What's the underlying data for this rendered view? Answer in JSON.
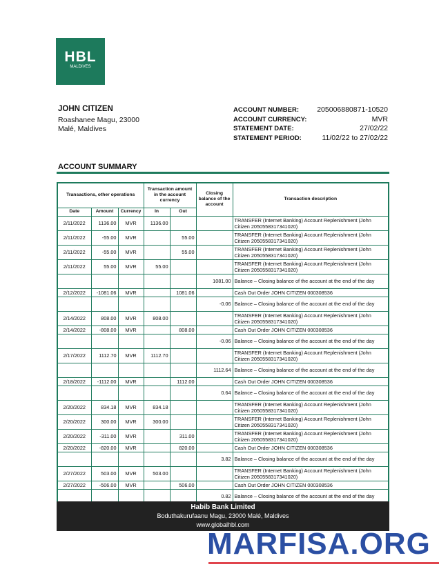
{
  "logo": {
    "text": "HBL",
    "subtext": "MALDIVES"
  },
  "customer": {
    "name": "JOHN CITIZEN",
    "address": [
      "Roashanee Magu, 23000",
      "Malé, Maldives"
    ]
  },
  "account": [
    {
      "label": "ACCOUNT NUMBER:",
      "value": "205006880871-10520"
    },
    {
      "label": "ACCOUNT CURRENCY:",
      "value": "MVR"
    },
    {
      "label": "STATEMENT DATE:",
      "value": "27/02/22"
    },
    {
      "label": "STATEMENT PERIOD:",
      "value": "11/02/22 to 27/02/22"
    }
  ],
  "summary_title": "ACCOUNT SUMMARY",
  "table": {
    "groups": [
      "Transactions, other operations",
      "Transaction amount in the account currency",
      "Closing balance of the account",
      "Transaction description"
    ],
    "columns": [
      "Date",
      "Amount",
      "Currency",
      "In",
      "Out"
    ],
    "rows": [
      [
        "2/11/2022",
        "1136.00",
        "MVR",
        "1136.00",
        null,
        null,
        "TRANSFER (Internet Banking) Account Replenishment (John Citizen 2050558317341020)"
      ],
      [
        "2/11/2022",
        "-55.00",
        "MVR",
        null,
        "55.00",
        null,
        "TRANSFER (Internet Banking) Account Replenishment (John Citizen 2050558317341020)"
      ],
      [
        "2/11/2022",
        "-55.00",
        "MVR",
        null,
        "55.00",
        null,
        "TRANSFER (Internet Banking) Account Replenishment (John Citizen 2050558317341020)"
      ],
      [
        "2/11/2022",
        "55.00",
        "MVR",
        "55.00",
        null,
        null,
        "TRANSFER (Internet Banking) Account Replenishment (John Citizen 2050558317341020)"
      ],
      [
        null,
        null,
        null,
        null,
        null,
        "1081.00",
        "Balance – Closing balance of the account at the end of the day"
      ],
      [
        "2/12/2022",
        "-1081.06",
        "MVR",
        null,
        "1081.06",
        null,
        "Cash Out Order JOHN CITIZEN 000308536"
      ],
      [
        null,
        null,
        null,
        null,
        null,
        "-0.06",
        "Balance – Closing balance of the account at the end of the day"
      ],
      [
        "2/14/2022",
        "808.00",
        "MVR",
        "808.00",
        null,
        null,
        "TRANSFER (Internet Banking) Account Replenishment (John Citizen 2050558317341020)"
      ],
      [
        "2/14/2022",
        "-808.00",
        "MVR",
        null,
        "808.00",
        null,
        "Cash Out Order JOHN CITIZEN 000308536"
      ],
      [
        null,
        null,
        null,
        null,
        null,
        "-0.06",
        "Balance – Closing balance of the account at the end of the day"
      ],
      [
        "2/17/2022",
        "1112.70",
        "MVR",
        "1112.70",
        null,
        null,
        "TRANSFER (Internet Banking) Account Replenishment (John Citizen 2050558317341020)"
      ],
      [
        null,
        null,
        null,
        null,
        null,
        "1112.64",
        "Balance – Closing balance of the account at the end of the day"
      ],
      [
        "2/18/2022",
        "-1112.00",
        "MVR",
        null,
        "1112.00",
        null,
        "Cash Out Order JOHN CITIZEN 000308536"
      ],
      [
        null,
        null,
        null,
        null,
        null,
        "0.64",
        "Balance – Closing balance of the account at the end of the day"
      ],
      [
        "2/20/2022",
        "834.18",
        "MVR",
        "834.18",
        null,
        null,
        "TRANSFER (Internet Banking) Account Replenishment (John Citizen 2050558317341020)"
      ],
      [
        "2/20/2022",
        "300.00",
        "MVR",
        "300.00",
        null,
        null,
        "TRANSFER (Internet Banking) Account Replenishment (John Citizen 2050558317341020)"
      ],
      [
        "2/20/2022",
        "-311.00",
        "MVR",
        null,
        "311.00",
        null,
        "TRANSFER (Internet Banking) Account Replenishment (John Citizen 2050558317341020)"
      ],
      [
        "2/20/2022",
        "-820.00",
        "MVR",
        null,
        "820.00",
        null,
        "Cash Out Order JOHN CITIZEN 000308536"
      ],
      [
        null,
        null,
        null,
        null,
        null,
        "3.82",
        "Balance – Closing balance of the account at the end of the day"
      ],
      [
        "2/27/2022",
        "503.00",
        "MVR",
        "503.00",
        null,
        null,
        "TRANSFER (Internet Banking) Account Replenishment (John Citizen 2050558317341020)"
      ],
      [
        "2/27/2022",
        "-506.00",
        "MVR",
        null,
        "506.00",
        null,
        "Cash Out Order JOHN CITIZEN 000308536"
      ],
      [
        null,
        null,
        null,
        null,
        null,
        "0.82",
        "Balance – Closing balance of the account at the end of the day"
      ]
    ]
  },
  "footer": {
    "bank": "Habib Bank Limited",
    "address": "Boduthakurufaanu Magu, 23000 Malé, Maldives",
    "website": "www.globalhbl.com"
  },
  "watermark": "MARFISA.ORG"
}
